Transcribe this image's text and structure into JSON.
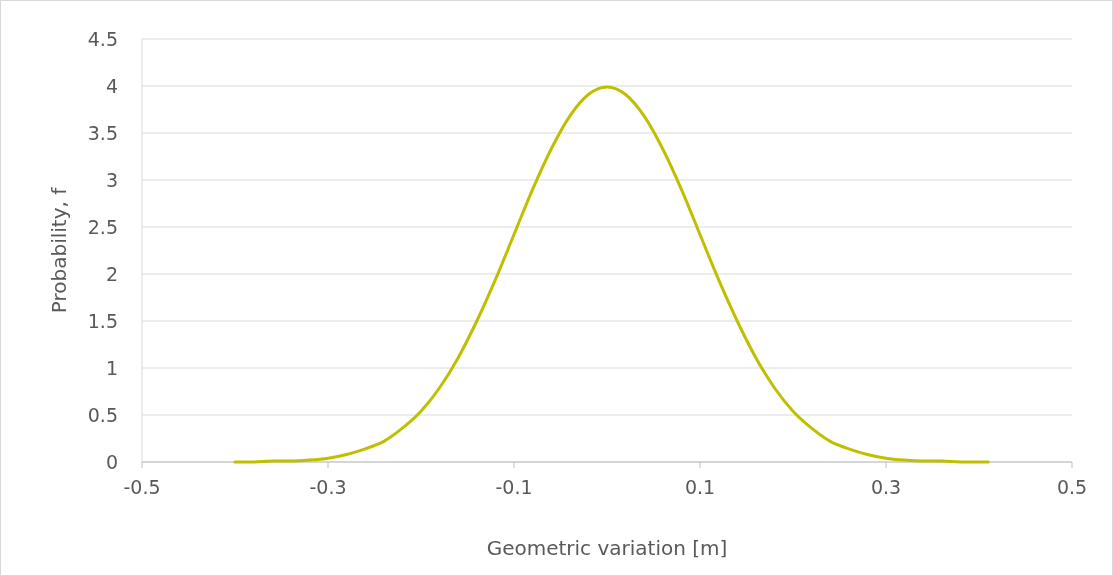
{
  "chart_data": {
    "type": "line",
    "xlabel": "Geometric variation [m]",
    "ylabel": "Probability, f",
    "x": [
      -0.4,
      -0.38,
      -0.36,
      -0.34,
      -0.32,
      -0.3,
      -0.28,
      -0.26,
      -0.24,
      -0.22,
      -0.2,
      -0.18,
      -0.16,
      -0.14,
      -0.12,
      -0.1,
      -0.08,
      -0.06,
      -0.04,
      -0.02,
      0,
      0.02,
      0.04,
      0.06,
      0.08,
      0.1,
      0.12,
      0.14,
      0.16,
      0.18,
      0.2,
      0.22,
      0.24,
      0.26,
      0.28,
      0.3,
      0.32,
      0.34,
      0.36,
      0.38,
      0.41
    ],
    "series": [
      {
        "color": "#bfbf00",
        "values": [
          0,
          0,
          0.01,
          0.01,
          0.02,
          0.04,
          0.08,
          0.14,
          0.22,
          0.36,
          0.54,
          0.79,
          1.11,
          1.5,
          1.94,
          2.42,
          2.9,
          3.33,
          3.68,
          3.91,
          3.99,
          3.91,
          3.68,
          3.33,
          2.9,
          2.42,
          1.94,
          1.5,
          1.11,
          0.79,
          0.54,
          0.36,
          0.22,
          0.14,
          0.08,
          0.04,
          0.02,
          0.01,
          0.01,
          0,
          0
        ]
      }
    ],
    "xlim": [
      -0.5,
      0.5
    ],
    "xticks": [
      -0.5,
      -0.3,
      -0.1,
      0.1,
      0.3,
      0.5
    ],
    "ylim": [
      0,
      4.5
    ],
    "yticks": [
      0,
      0.5,
      1,
      1.5,
      2,
      2.5,
      3,
      3.5,
      4,
      4.5
    ],
    "grid": "y",
    "marker": "none",
    "line_style": "solid"
  }
}
